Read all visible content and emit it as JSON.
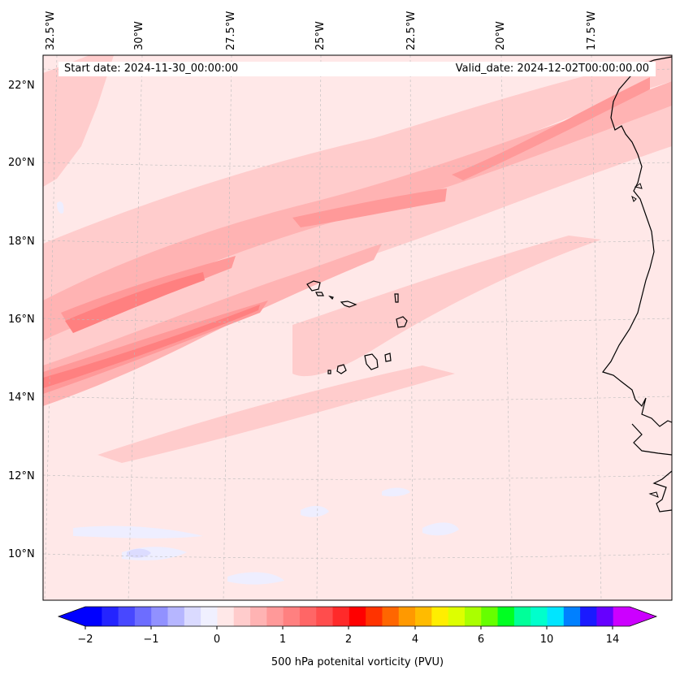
{
  "header": {
    "start_date": "Start date: 2024-11-30_00:00:00",
    "valid_date": "Valid_date: 2024-12-02T00:00:00.00"
  },
  "map": {
    "longitude_labels": [
      "32.5°W",
      "30°W",
      "27.5°W",
      "25°W",
      "22.5°W",
      "20°W",
      "17.5°W"
    ],
    "latitude_labels": [
      "22°N",
      "20°N",
      "18°N",
      "16°N",
      "14°N",
      "12°N",
      "10°N"
    ],
    "gridlines": true,
    "coastlines": true
  },
  "colorbar": {
    "title": "500 hPa potenital vorticity (PVU)",
    "tick_labels": [
      "−2",
      "−1",
      "0",
      "1",
      "2",
      "4",
      "6",
      "10",
      "14"
    ],
    "extend": "both",
    "colors": [
      "#0000ff",
      "#2424ff",
      "#4848ff",
      "#6d6dff",
      "#9191ff",
      "#b6b6ff",
      "#dadaff",
      "#f0f0ff",
      "#ffe8e8",
      "#ffcccc",
      "#ffb3b3",
      "#ff9999",
      "#ff8080",
      "#ff6666",
      "#ff4d4d",
      "#ff2a2a",
      "#ff0000",
      "#ff3300",
      "#ff6600",
      "#ff9900",
      "#ffbb00",
      "#ffee00",
      "#ddff00",
      "#aaff00",
      "#66ff00",
      "#00ff22",
      "#00ff99",
      "#00ffcc",
      "#00e5ff",
      "#0080ff",
      "#1a1aff",
      "#6600ff",
      "#cc00ff"
    ],
    "under_color": "#0000ff",
    "over_color": "#cc00ff"
  },
  "field_colors": {
    "background": "#ffe8e8",
    "level1": "#ffcccc",
    "level2": "#ffb3b3",
    "level3": "#ff9999",
    "level4": "#ff8080",
    "negative": "#eeeeff",
    "negative2": "#dcdcff"
  }
}
